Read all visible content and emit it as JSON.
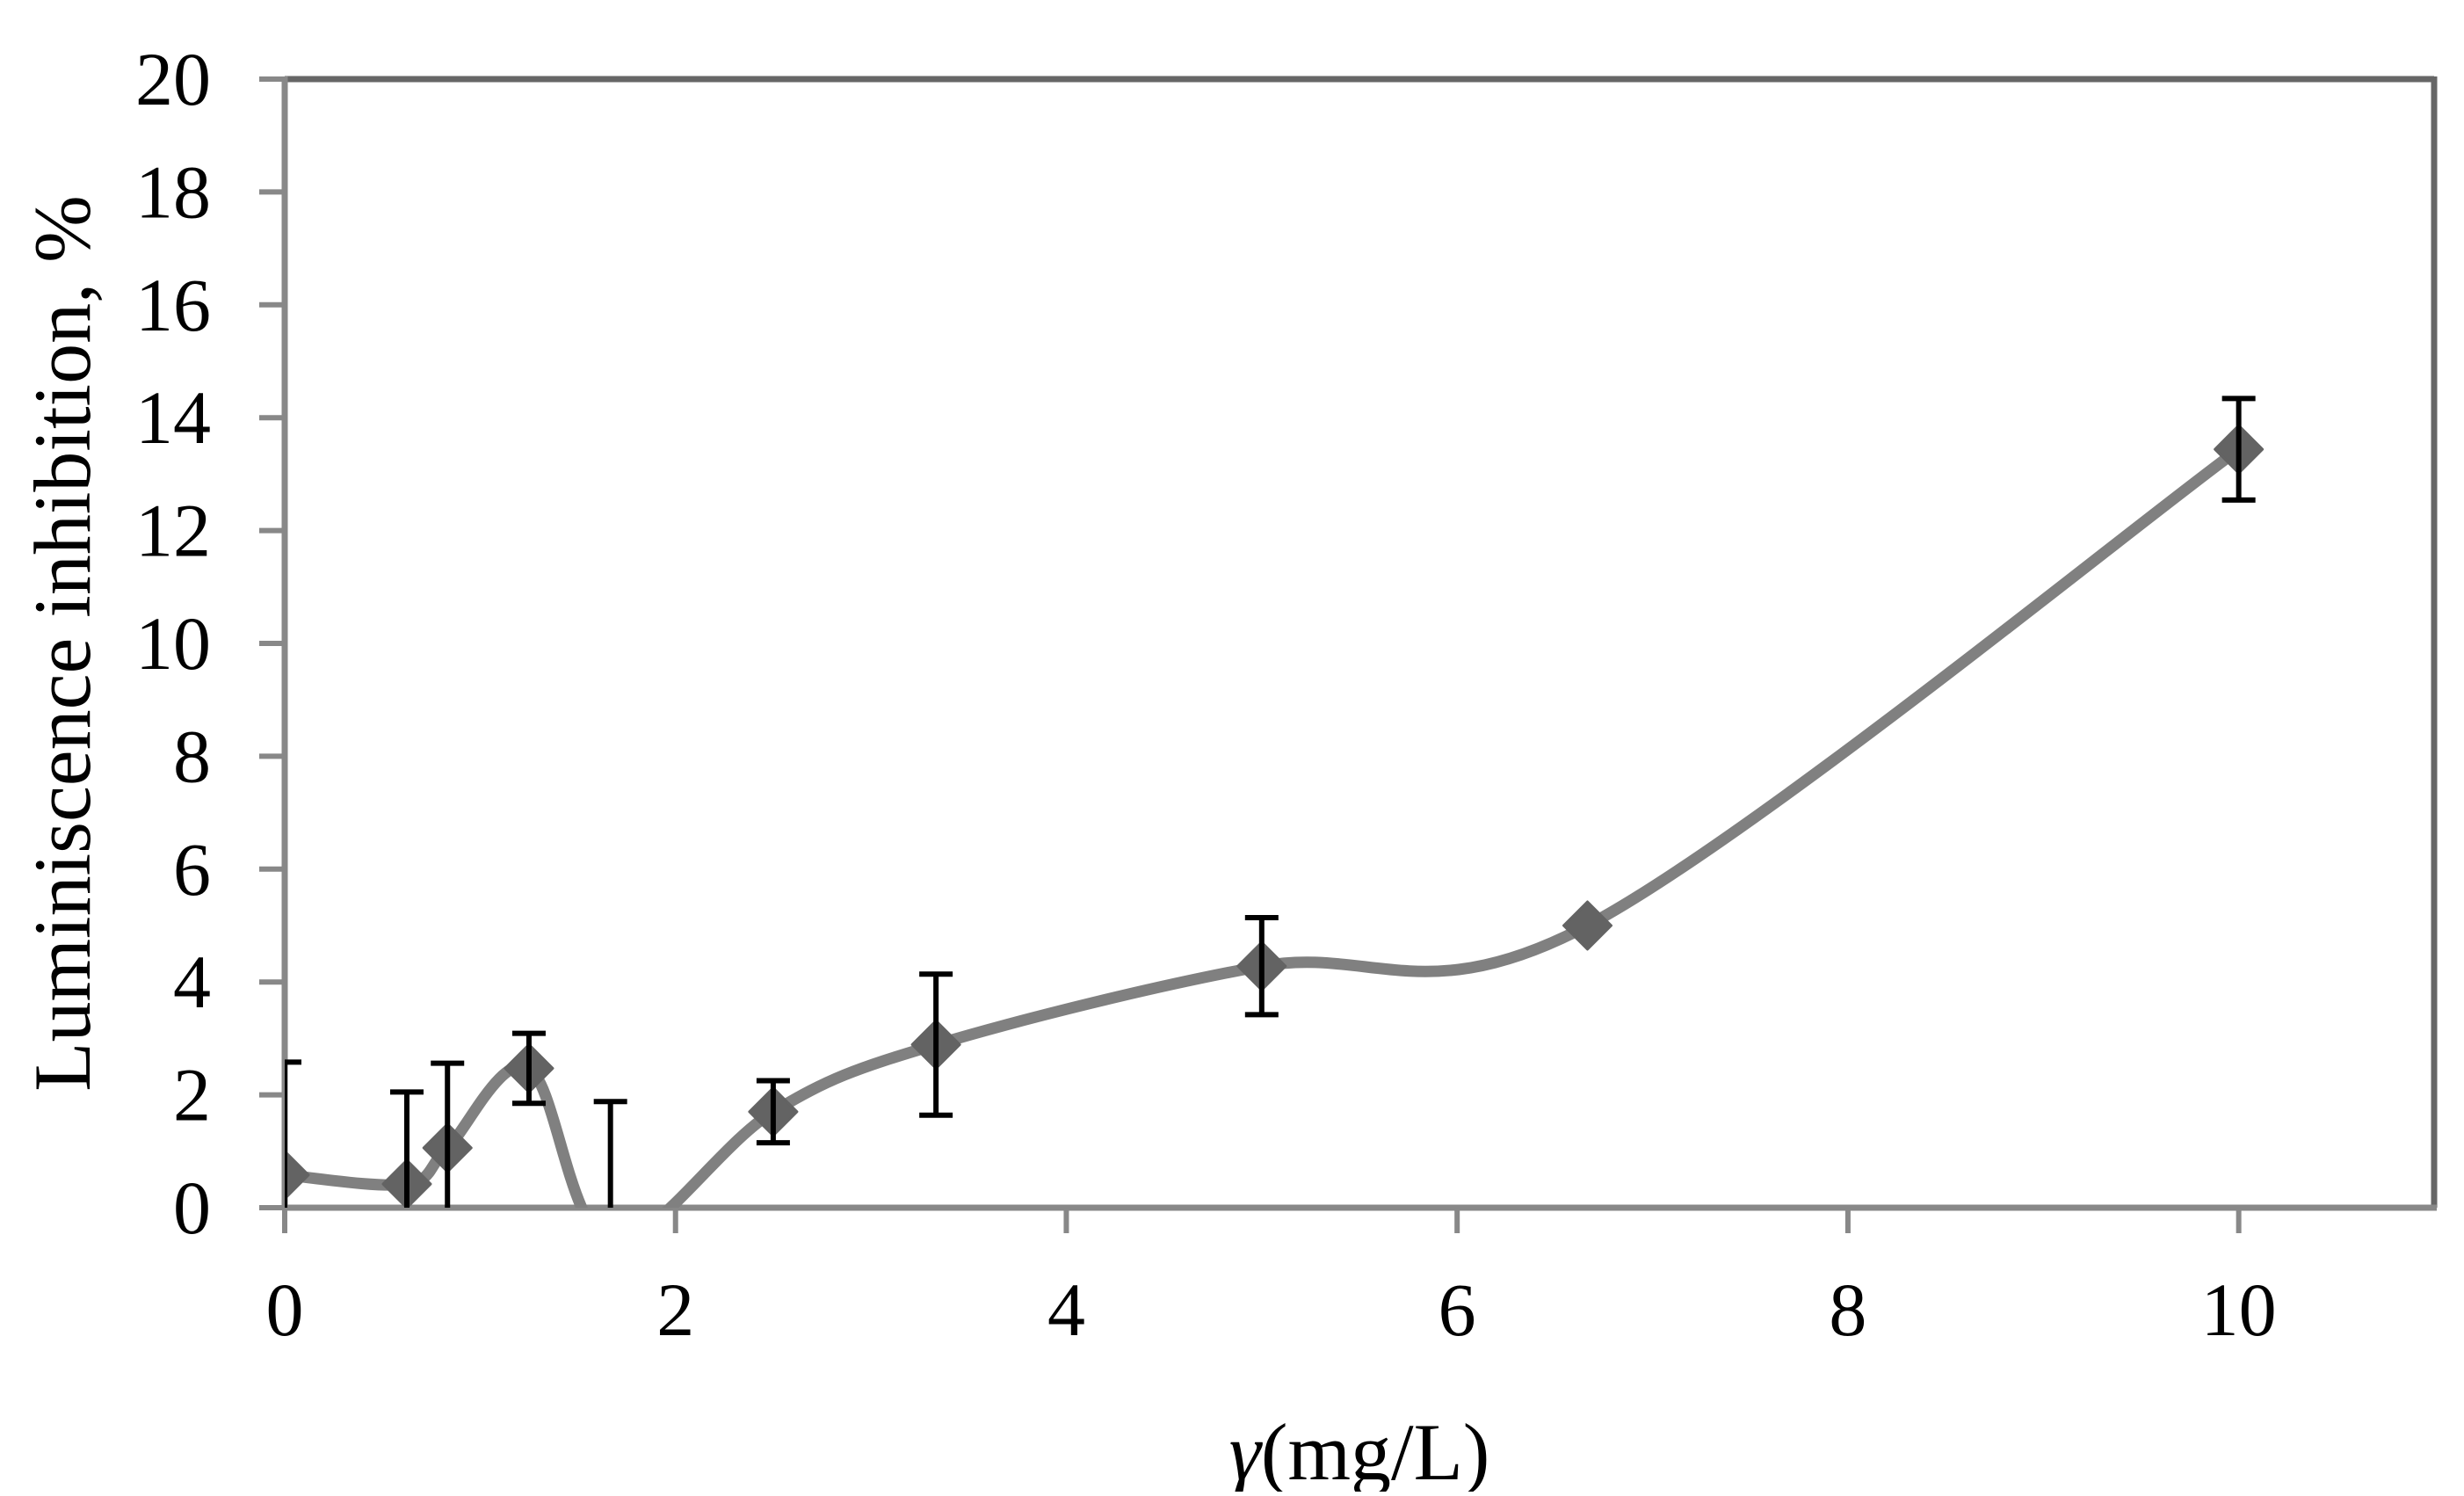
{
  "chart_data": {
    "type": "line",
    "title": "",
    "xlabel": "γ(mg/L)",
    "xlabel_parts": {
      "symbol": "γ",
      "unit": "(mg/L)"
    },
    "ylabel": "Luminiscence inhibition, %",
    "xlim": [
      0,
      11
    ],
    "ylim": [
      0,
      20
    ],
    "x_ticks": [
      0,
      2,
      4,
      6,
      8,
      10
    ],
    "y_ticks": [
      0,
      2,
      4,
      6,
      8,
      10,
      12,
      14,
      16,
      18,
      20
    ],
    "grid": false,
    "legend": null,
    "smoothed": true,
    "series": [
      {
        "name": "Luminescence inhibition",
        "marker": "diamond",
        "x": [
          0,
          0.625,
          0.833,
          1.25,
          1.667,
          2.5,
          3.333,
          5.0,
          6.667,
          10.0
        ],
        "y": [
          0.58,
          0.42,
          1.06,
          2.47,
          -0.6,
          1.7,
          2.89,
          4.28,
          5.0,
          13.44
        ],
        "error": [
          2.0,
          1.63,
          1.5,
          0.62,
          2.48,
          0.55,
          1.25,
          0.86,
          0,
          0.9
        ]
      }
    ]
  },
  "style": {
    "line_color": "#808080",
    "marker_color": "#636363",
    "error_bar_color": "#000000",
    "axis_color": "#888888",
    "frame_color": "#666666"
  }
}
